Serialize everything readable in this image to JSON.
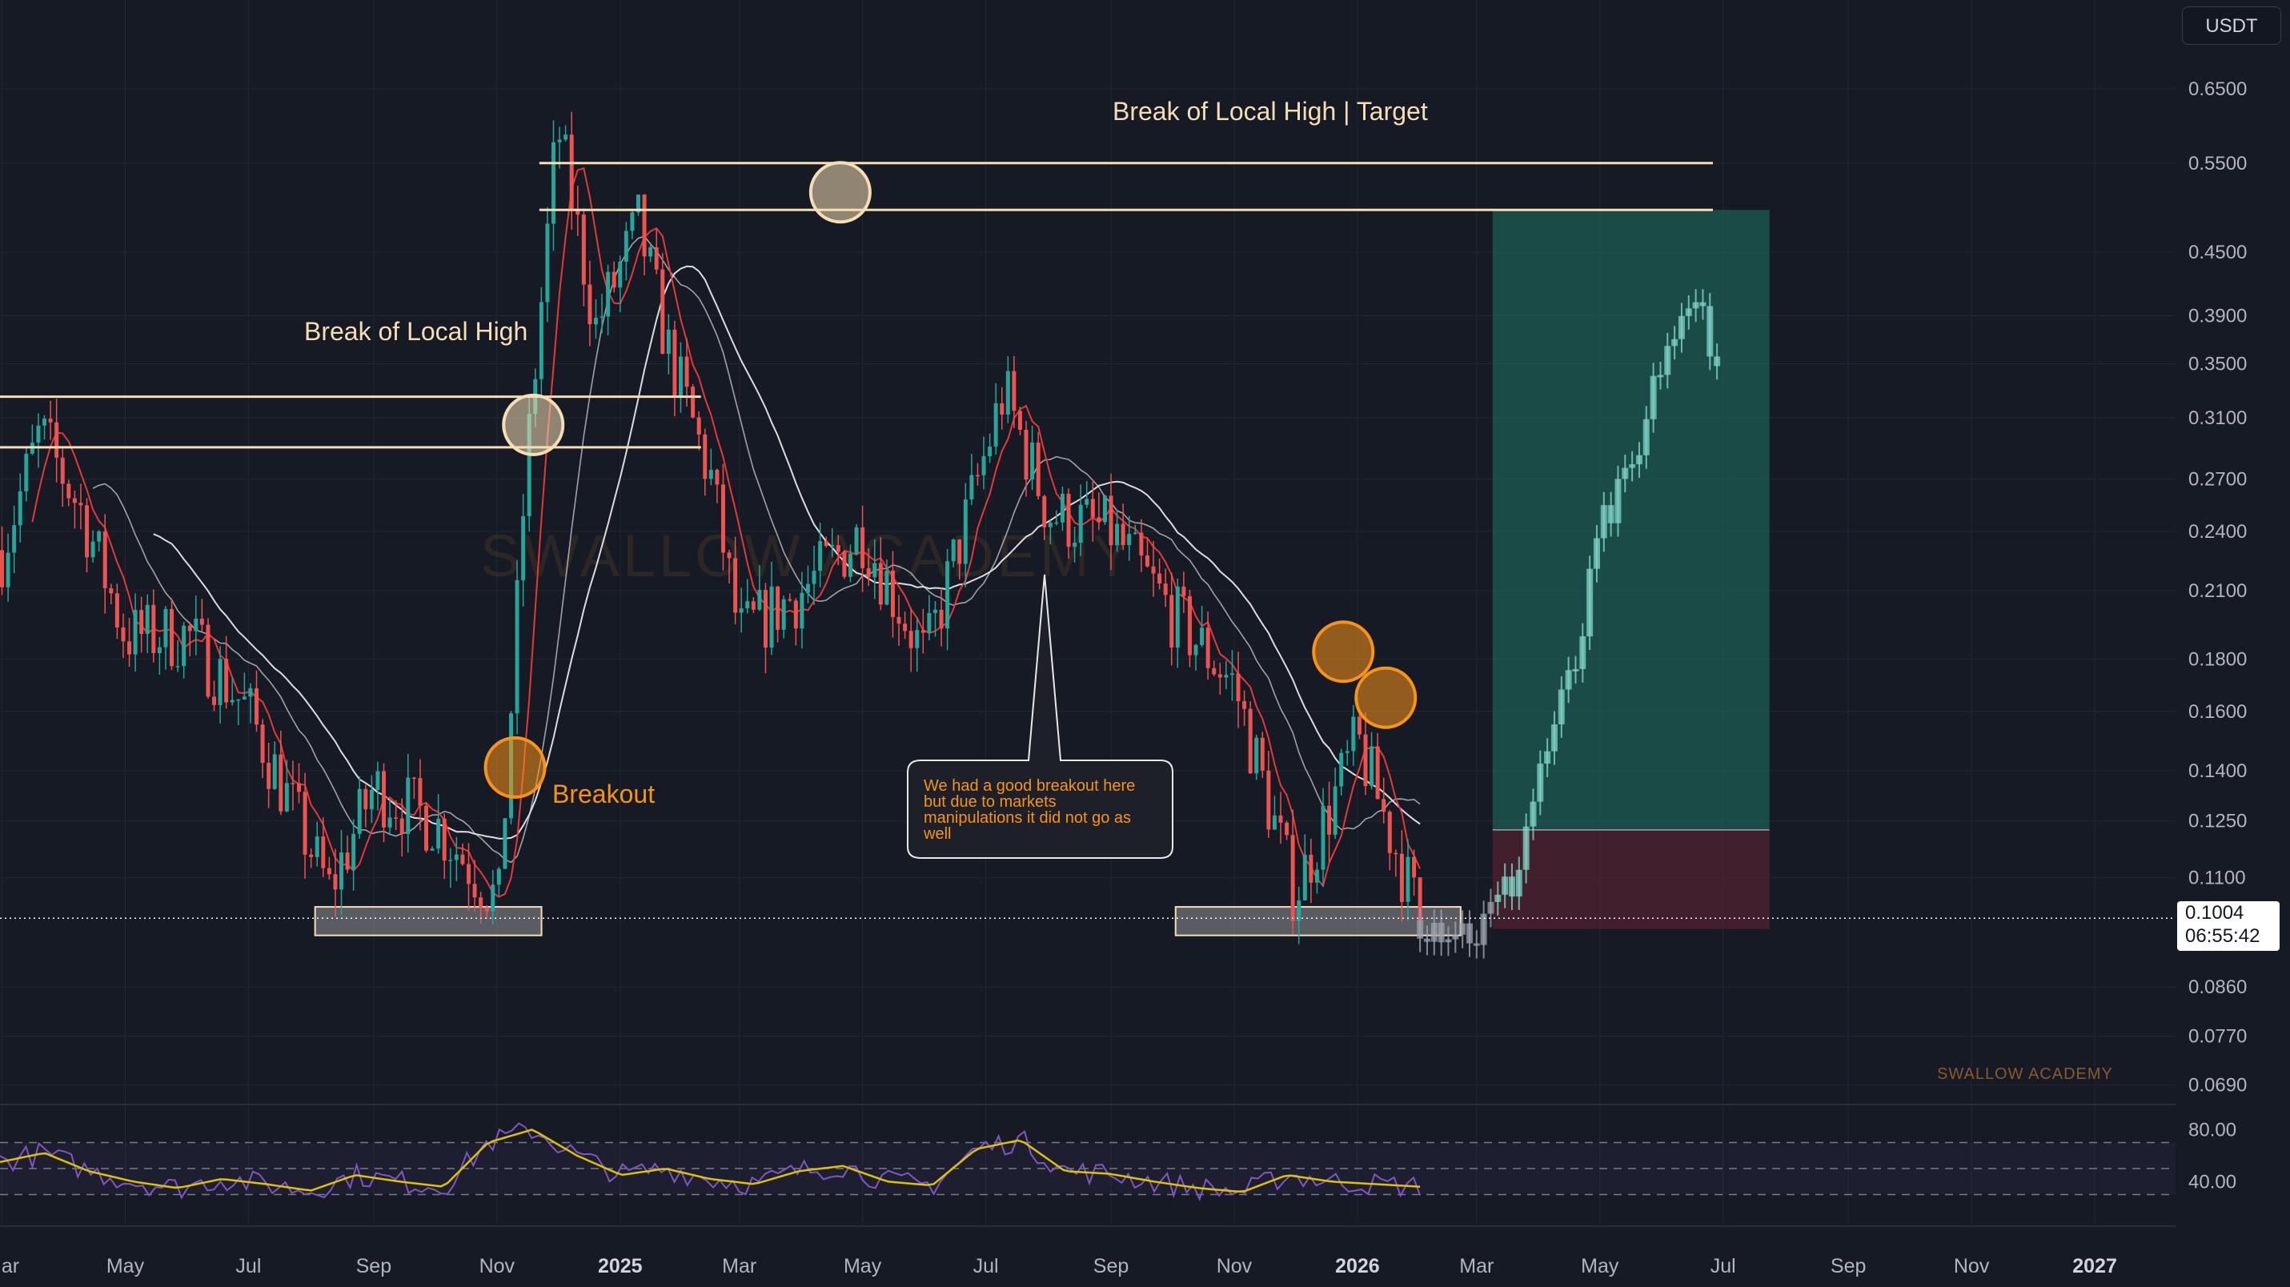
{
  "header": {
    "currency": "USDT"
  },
  "current_price": {
    "value": "0.1004",
    "countdown": "06:55:42"
  },
  "annotations": {
    "target_label": "Break of Local High | Target",
    "local_high_label": "Break of Local High",
    "breakout_label": "Breakout",
    "note_lines": [
      "We had a good breakout here",
      "but due to markets",
      "manipulations it did not go as",
      "well"
    ],
    "watermark_big": "SWALLOW ACADEMY",
    "watermark_small": "SWALLOW ACADEMY"
  },
  "colors": {
    "background": "#161a25",
    "up_candle": "#26a69a",
    "down_candle": "#ef5350",
    "level_line": "#f5deb3",
    "accent_orange": "#f7931a",
    "profit_zone": "#1e6b5c",
    "loss_zone": "#5b2230",
    "rsi_line": "#7e57c2",
    "rsi_ma": "#e0c200"
  },
  "chart_data": [
    {
      "type": "candlestick",
      "price_scale": "log",
      "y_tick_labels": [
        "0.6500",
        "0.5500",
        "0.4500",
        "0.3900",
        "0.3500",
        "0.3100",
        "0.2700",
        "0.2400",
        "0.2100",
        "0.1800",
        "0.1600",
        "0.1400",
        "0.1250",
        "0.1100",
        "0.0860",
        "0.0770",
        "0.0690"
      ],
      "x_tick_labels": [
        "Mar",
        "May",
        "Jul",
        "Sep",
        "Nov",
        "2025",
        "Mar",
        "May",
        "Jul",
        "Sep",
        "Nov",
        "2026",
        "Mar",
        "May",
        "Jul",
        "Sep",
        "Nov",
        "2027"
      ],
      "x_year_labels": [
        "2025",
        "2026",
        "2027"
      ],
      "price_path": [
        {
          "t": "2024-03",
          "p": 0.23
        },
        {
          "t": "2024-03-20",
          "p": 0.3
        },
        {
          "t": "2024-04-10",
          "p": 0.25
        },
        {
          "t": "2024-05",
          "p": 0.19
        },
        {
          "t": "2024-06",
          "p": 0.19
        },
        {
          "t": "2024-07",
          "p": 0.16
        },
        {
          "t": "2024-08-10",
          "p": 0.107
        },
        {
          "t": "2024-09",
          "p": 0.135
        },
        {
          "t": "2024-10",
          "p": 0.125
        },
        {
          "t": "2024-11-02",
          "p": 0.104
        },
        {
          "t": "2024-11-15",
          "p": 0.27
        },
        {
          "t": "2024-12-01",
          "p": 0.6
        },
        {
          "t": "2024-12-20",
          "p": 0.38
        },
        {
          "t": "2025-01-10",
          "p": 0.48
        },
        {
          "t": "2025-01-25",
          "p": 0.36
        },
        {
          "t": "2025-02-15",
          "p": 0.27
        },
        {
          "t": "2025-03",
          "p": 0.19
        },
        {
          "t": "2025-04",
          "p": 0.21
        },
        {
          "t": "2025-05",
          "p": 0.24
        },
        {
          "t": "2025-06",
          "p": 0.18
        },
        {
          "t": "2025-07-10",
          "p": 0.33
        },
        {
          "t": "2025-08",
          "p": 0.25
        },
        {
          "t": "2025-09",
          "p": 0.24
        },
        {
          "t": "2025-10",
          "p": 0.2
        },
        {
          "t": "2025-11",
          "p": 0.17
        },
        {
          "t": "2025-12",
          "p": 0.106
        },
        {
          "t": "2026-01",
          "p": 0.15
        },
        {
          "t": "2026-02",
          "p": 0.1004
        }
      ],
      "levels": [
        {
          "label": "Break of Local High | Target",
          "prices": [
            0.55,
            0.495
          ]
        },
        {
          "label": "Break of Local High",
          "prices": [
            0.325,
            0.29
          ]
        }
      ],
      "support_zones": [
        {
          "from": "2024-08",
          "to": "2024-12",
          "price_range": [
            0.098,
            0.103
          ]
        },
        {
          "from": "2025-10",
          "to": "2026-03",
          "price_range": [
            0.098,
            0.103
          ]
        }
      ],
      "position": {
        "entry": 0.1225,
        "target": 0.495,
        "stop": 0.098,
        "from": "2026-03",
        "to": "2026-07-20"
      },
      "projected_path": [
        {
          "t": "2026-02",
          "p": 0.1
        },
        {
          "t": "2026-03",
          "p": 0.097
        },
        {
          "t": "2026-03-20",
          "p": 0.11
        },
        {
          "t": "2026-04",
          "p": 0.14
        },
        {
          "t": "2026-04-20",
          "p": 0.18
        },
        {
          "t": "2026-05",
          "p": 0.24
        },
        {
          "t": "2026-05-20",
          "p": 0.28
        },
        {
          "t": "2026-06",
          "p": 0.36
        },
        {
          "t": "2026-06-20",
          "p": 0.4
        },
        {
          "t": "2026-07",
          "p": 0.34
        }
      ],
      "current_price": 0.1004
    },
    {
      "type": "line",
      "name": "RSI",
      "y_tick_labels": [
        "80.00",
        "40.00"
      ],
      "band": [
        30,
        70
      ],
      "values_sample": [
        55,
        62,
        48,
        40,
        35,
        42,
        38,
        33,
        45,
        40,
        36,
        70,
        80,
        60,
        45,
        50,
        42,
        38,
        48,
        52,
        40,
        37,
        65,
        72,
        48,
        46,
        40,
        35,
        32,
        45,
        40,
        38,
        36
      ]
    }
  ]
}
